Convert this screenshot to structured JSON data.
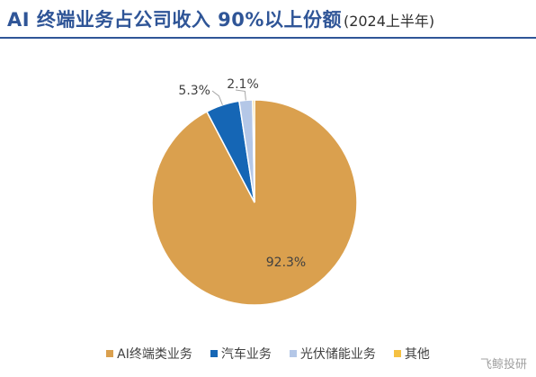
{
  "header": {
    "title": "AI 终端业务占公司收入 90%以上份额",
    "subtitle": "(2024上半年)"
  },
  "watermark": "飞鲸投研",
  "chart_data": {
    "type": "pie",
    "title": "",
    "legend_placement": "bottom",
    "slices": [
      {
        "name": "AI终端类业务",
        "value": 92.3,
        "label": "92.3%",
        "color": "#DAA04E"
      },
      {
        "name": "汽车业务",
        "value": 5.3,
        "label": "5.3%",
        "color": "#1566B5"
      },
      {
        "name": "光伏储能业务",
        "value": 2.1,
        "label": "2.1%",
        "color": "#B4C7E7"
      },
      {
        "name": "其他",
        "value": 0.3,
        "label": "",
        "color": "#F5C142"
      }
    ]
  }
}
